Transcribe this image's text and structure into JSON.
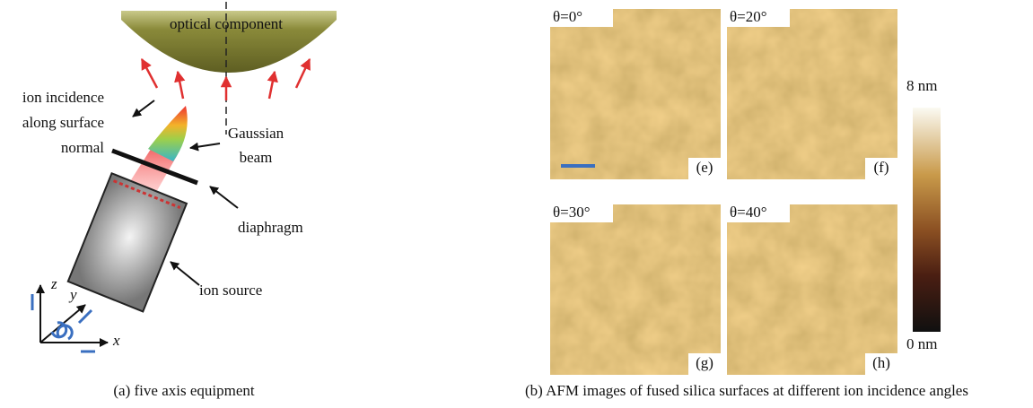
{
  "panel_a": {
    "labels": {
      "optical_component": "optical component",
      "ion_incidence": [
        "ion incidence",
        "along surface",
        "normal"
      ],
      "gaussian_beam": [
        "Gaussian",
        "beam"
      ],
      "diaphragm": "diaphragm",
      "ion_source": "ion source",
      "axes": [
        "z",
        "y",
        "x"
      ]
    },
    "caption": "(a) five axis equipment"
  },
  "panel_b": {
    "images": [
      {
        "angle": "θ=0°",
        "tag": "(e)"
      },
      {
        "angle": "θ=20°",
        "tag": "(f)"
      },
      {
        "angle": "θ=30°",
        "tag": "(g)"
      },
      {
        "angle": "θ=40°",
        "tag": "(h)"
      }
    ],
    "colorbar": {
      "max": "8 nm",
      "min": "0 nm"
    },
    "caption": "(b) AFM images of fused silica surfaces at different ion incidence angles"
  }
}
